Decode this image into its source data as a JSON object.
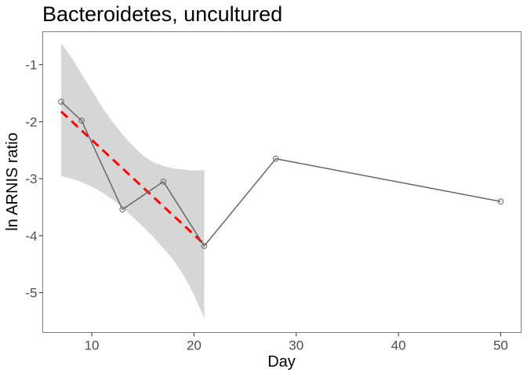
{
  "chart_data": {
    "type": "line",
    "title": "Bacteroidetes, uncultured",
    "xlabel": "Day",
    "ylabel": "ln ARNIS ratio",
    "xlim": [
      5.2,
      52.0
    ],
    "ylim": [
      -5.7,
      -0.42
    ],
    "xticks": [
      10,
      20,
      30,
      40,
      50
    ],
    "yticks": [
      -5,
      -4,
      -3,
      -2,
      -1
    ],
    "grid": false,
    "series": [
      {
        "kind": "observed",
        "color": "#666666",
        "x": [
          7,
          9,
          13,
          17,
          21,
          28,
          50
        ],
        "y": [
          -1.65,
          -1.98,
          -3.54,
          -3.05,
          -4.18,
          -2.65,
          -3.4
        ]
      }
    ],
    "fit": {
      "color": "#ff0000",
      "style": "dashed",
      "x": [
        7,
        21
      ],
      "y": [
        -1.82,
        -4.15
      ]
    },
    "confidence_band": {
      "color": "#d6d6d6",
      "x": [
        7,
        8,
        9,
        10,
        11,
        12,
        13,
        14,
        15,
        16,
        17,
        18,
        19,
        20,
        21
      ],
      "lower": [
        -2.95,
        -3.0,
        -3.06,
        -3.14,
        -3.24,
        -3.36,
        -3.5,
        -3.67,
        -3.84,
        -4.02,
        -4.22,
        -4.43,
        -4.7,
        -5.04,
        -5.45
      ],
      "upper": [
        -0.62,
        -0.87,
        -1.16,
        -1.45,
        -1.74,
        -2.0,
        -2.22,
        -2.42,
        -2.59,
        -2.71,
        -2.78,
        -2.82,
        -2.84,
        -2.86,
        -2.85
      ]
    }
  }
}
